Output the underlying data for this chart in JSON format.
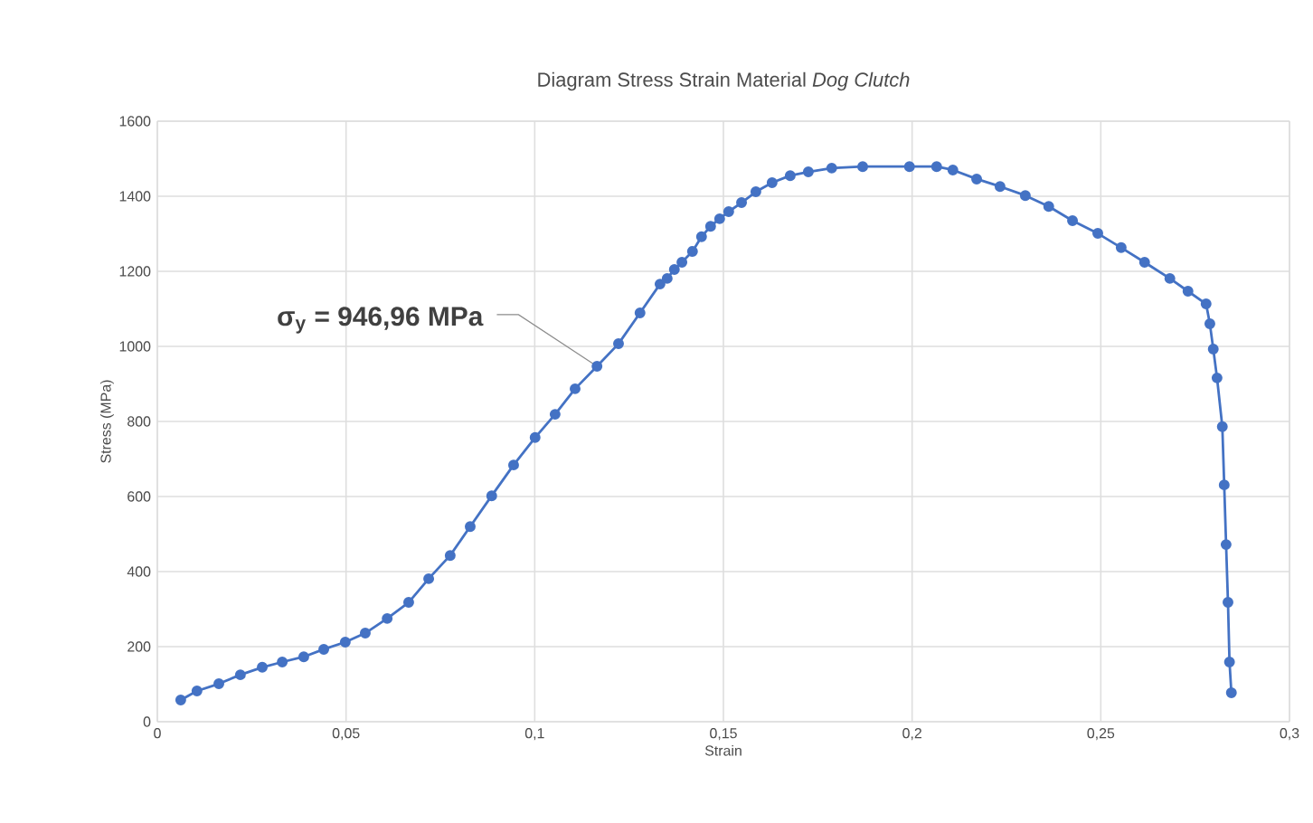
{
  "chart_data": {
    "type": "line",
    "title": "Diagram Stress Strain Material *Dog Clutch*",
    "xlabel": "Strain",
    "ylabel": "Stress (MPa)",
    "xlim": [
      0,
      0.3
    ],
    "xticks": [
      0,
      {
        "value": 0.05,
        "label": "0,05"
      },
      {
        "value": 0.1,
        "label": "0,1"
      },
      {
        "value": 0.15,
        "label": "0,15"
      },
      {
        "value": 0.2,
        "label": "0,2"
      },
      {
        "value": 0.25,
        "label": "0,25"
      },
      {
        "value": 0.3,
        "label": "0,3"
      }
    ],
    "ylim": [
      0,
      1600
    ],
    "yticks": [
      0,
      200,
      400,
      600,
      800,
      1000,
      1200,
      1400,
      1600
    ],
    "grid": true,
    "marker": "circle",
    "line_style": "solid",
    "series": [
      {
        "color": "#4472c4",
        "x": [
          0.0062,
          0.0105,
          0.0163,
          0.022,
          0.0278,
          0.0331,
          0.0388,
          0.0441,
          0.0498,
          0.0551,
          0.0609,
          0.0666,
          0.0719,
          0.0776,
          0.0829,
          0.0886,
          0.0944,
          0.1001,
          0.1054,
          0.1107,
          0.1165,
          0.1222,
          0.1279,
          0.1332,
          0.1351,
          0.137,
          0.139,
          0.1418,
          0.1442,
          0.1466,
          0.149,
          0.1514,
          0.1548,
          0.1586,
          0.1629,
          0.1677,
          0.1725,
          0.1787,
          0.1869,
          0.1993,
          0.2065,
          0.2108,
          0.2171,
          0.2233,
          0.23,
          0.2362,
          0.2425,
          0.2492,
          0.2554,
          0.2616,
          0.2683,
          0.2731,
          0.2779,
          0.2789,
          0.2798,
          0.2808,
          0.2822,
          0.2827,
          0.2832,
          0.2837,
          0.2841,
          0.2846
        ],
        "values": [
          58,
          82,
          101,
          125,
          145,
          159,
          173,
          193,
          212,
          236,
          275,
          318,
          381,
          443,
          520,
          602,
          684,
          757,
          819,
          887,
          947,
          1007,
          1089,
          1166,
          1181,
          1205,
          1224,
          1253,
          1292,
          1320,
          1340,
          1359,
          1383,
          1412,
          1436,
          1455,
          1465,
          1475,
          1479,
          1479,
          1479,
          1470,
          1446,
          1426,
          1402,
          1373,
          1335,
          1301,
          1263,
          1224,
          1181,
          1147,
          1113,
          1060,
          993,
          916,
          786,
          631,
          472,
          318,
          159,
          77
        ]
      }
    ],
    "annotations": [
      {
        "text": "σ$_{y}$ = 946,96 MPa",
        "x": 0.1165,
        "y": 946.96
      }
    ]
  }
}
